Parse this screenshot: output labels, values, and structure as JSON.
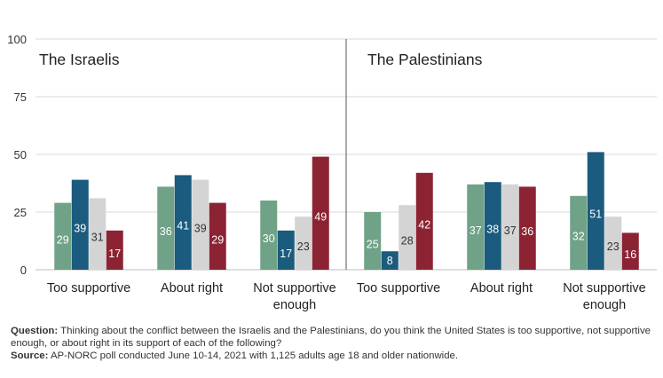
{
  "chart_data": {
    "type": "bar",
    "ylim": [
      0,
      100
    ],
    "yticks": [
      0,
      25,
      50,
      75,
      100
    ],
    "grid": true,
    "legend": "none",
    "panels": [
      {
        "title": "The Israelis",
        "categories": [
          "Too supportive",
          "About right",
          "Not supportive enough"
        ],
        "series": [
          {
            "values": [
              29,
              36,
              30
            ],
            "color": "#6fa287"
          },
          {
            "values": [
              39,
              41,
              17
            ],
            "color": "#1a5b7e"
          },
          {
            "values": [
              31,
              39,
              23
            ],
            "color": "#d4d4d4"
          },
          {
            "values": [
              17,
              29,
              49
            ],
            "color": "#8c2333"
          }
        ]
      },
      {
        "title": "The Palestinians",
        "categories": [
          "Too supportive",
          "About right",
          "Not supportive enough"
        ],
        "series": [
          {
            "values": [
              25,
              37,
              32
            ],
            "color": "#6fa287"
          },
          {
            "values": [
              8,
              38,
              51
            ],
            "color": "#1a5b7e"
          },
          {
            "values": [
              28,
              37,
              23
            ],
            "color": "#d4d4d4"
          },
          {
            "values": [
              42,
              36,
              16
            ],
            "color": "#8c2333"
          }
        ]
      }
    ]
  },
  "footnote": {
    "question_label": "Question:",
    "question_text": " Thinking about the conflict between the Israelis and the Palestinians, do you think the United States is too supportive, not supportive enough, or about right in its support of each of the following?",
    "source_label": "Source:",
    "source_text": " AP-NORC poll conducted June 10-14, 2021 with 1,125 adults age 18 and older nationwide."
  }
}
